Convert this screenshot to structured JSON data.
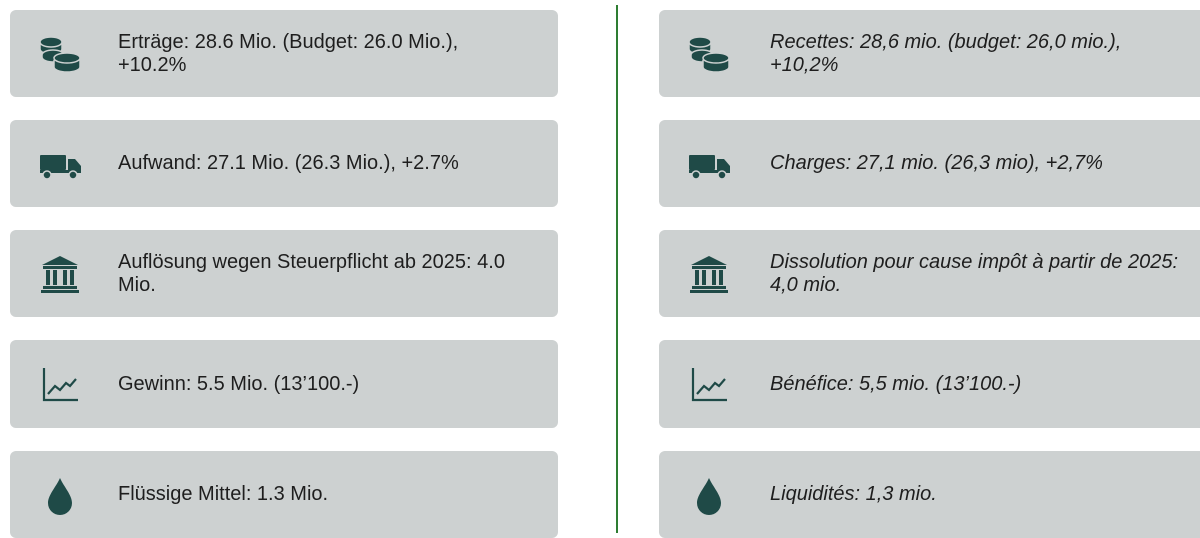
{
  "left": {
    "items": [
      {
        "text": "Erträge: 28.6 Mio. (Budget: 26.0 Mio.), +10.2%"
      },
      {
        "text": "Aufwand: 27.1 Mio. (26.3 Mio.), +2.7%"
      },
      {
        "text": "Auflösung wegen Steuerpflicht ab 2025: 4.0 Mio."
      },
      {
        "text": "Gewinn: 5.5 Mio. (13’100.-)"
      },
      {
        "text": "Flüssige Mittel: 1.3 Mio."
      }
    ]
  },
  "right": {
    "items": [
      {
        "text": "Recettes: 28,6 mio. (budget: 26,0 mio.), +10,2%"
      },
      {
        "text": "Charges: 27,1 mio. (26,3 mio), +2,7%"
      },
      {
        "text": "Dissolution pour cause impôt à partir de 2025: 4,0 mio."
      },
      {
        "text": "Bénéfice: 5,5 mio. (13’100.-)"
      },
      {
        "text": "Liquidités: 1,3 mio."
      }
    ]
  }
}
